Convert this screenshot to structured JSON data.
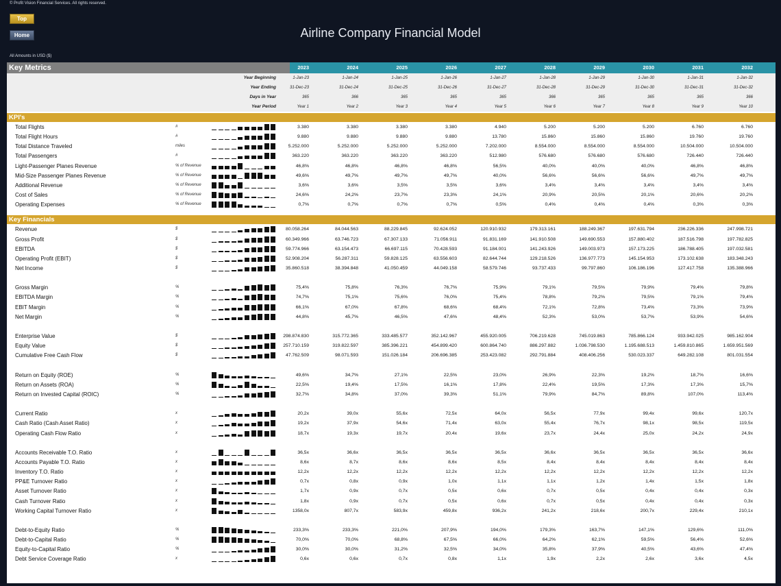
{
  "header": {
    "copyright": "© Profit Vision Financial Services. All rights reserved.",
    "top_button": "Top",
    "home_button": "Home",
    "title": "Airline Company Financial Model",
    "amounts_note": "All Amounts in  USD ($)"
  },
  "table": {
    "section_title": "Key Metrics",
    "years": [
      "2023",
      "2024",
      "2025",
      "2026",
      "2027",
      "2028",
      "2029",
      "2030",
      "2031",
      "2032"
    ],
    "period_rows": [
      {
        "label": "Year Beginning",
        "values": [
          "1-Jan-23",
          "1-Jan-24",
          "1-Jan-25",
          "1-Jan-26",
          "1-Jan-27",
          "1-Jan-28",
          "1-Jan-29",
          "1-Jan-30",
          "1-Jan-31",
          "1-Jan-32"
        ]
      },
      {
        "label": "Year Ending",
        "values": [
          "31-Dec-23",
          "31-Dec-24",
          "31-Dec-25",
          "31-Dec-26",
          "31-Dec-27",
          "31-Dec-28",
          "31-Dec-29",
          "31-Dec-30",
          "31-Dec-31",
          "31-Dec-32"
        ]
      },
      {
        "label": "Days in Year",
        "values": [
          "365",
          "366",
          "365",
          "365",
          "365",
          "366",
          "365",
          "365",
          "365",
          "366"
        ]
      },
      {
        "label": "Year Period",
        "values": [
          "Year 1",
          "Year 2",
          "Year 3",
          "Year 4",
          "Year 5",
          "Year 6",
          "Year 7",
          "Year 8",
          "Year 9",
          "Year 10"
        ]
      }
    ],
    "sections": [
      {
        "title": "KPI's",
        "groups": [
          [
            {
              "label": "Total Flights",
              "unit": "#",
              "values": [
                "3.380",
                "3.380",
                "3.380",
                "3.380",
                "4.940",
                "5.200",
                "5.200",
                "5.200",
                "6.760",
                "6.760"
              ]
            },
            {
              "label": "Total Flight Hours",
              "unit": "#",
              "values": [
                "9.880",
                "9.880",
                "9.880",
                "9.880",
                "13.780",
                "15.860",
                "15.860",
                "15.860",
                "19.760",
                "19.760"
              ]
            },
            {
              "label": "Total Distance Traveled",
              "unit": "miles",
              "values": [
                "5.252.000",
                "5.252.000",
                "5.252.000",
                "5.252.000",
                "7.202.000",
                "8.554.000",
                "8.554.000",
                "8.554.000",
                "10.504.000",
                "10.504.000"
              ]
            },
            {
              "label": "Total Passengers",
              "unit": "#",
              "values": [
                "363.220",
                "363.220",
                "363.220",
                "363.220",
                "512.980",
                "576.680",
                "576.680",
                "576.680",
                "726.440",
                "726.440"
              ]
            },
            {
              "label": "Light-Passenger Planes Revenue",
              "unit": "% of Revenue",
              "values": [
                "46,8%",
                "46,8%",
                "46,8%",
                "46,8%",
                "56,5%",
                "40,0%",
                "40,0%",
                "40,0%",
                "46,8%",
                "46,8%"
              ]
            },
            {
              "label": "Mid-Size Passenger Planes Revenue",
              "unit": "% of Revenue",
              "values": [
                "49,6%",
                "49,7%",
                "49,7%",
                "49,7%",
                "40,0%",
                "56,6%",
                "56,6%",
                "56,6%",
                "49,7%",
                "49,7%"
              ]
            },
            {
              "label": "Additional Revenue",
              "unit": "% of Revenue",
              "values": [
                "3,6%",
                "3,6%",
                "3,5%",
                "3,5%",
                "3,6%",
                "3,4%",
                "3,4%",
                "3,4%",
                "3,4%",
                "3,4%"
              ]
            },
            {
              "label": "Cost of Sales",
              "unit": "% of Revenue",
              "values": [
                "24,6%",
                "24,2%",
                "23,7%",
                "23,3%",
                "24,1%",
                "20,9%",
                "20,5%",
                "20,1%",
                "20,6%",
                "20,2%"
              ]
            },
            {
              "label": "Operating Expenses",
              "unit": "% of Revenue",
              "values": [
                "0,7%",
                "0,7%",
                "0,7%",
                "0,7%",
                "0,5%",
                "0,4%",
                "0,4%",
                "0,4%",
                "0,3%",
                "0,3%"
              ]
            }
          ]
        ]
      },
      {
        "title": "Key Financials",
        "groups": [
          [
            {
              "label": "Revenue",
              "unit": "$",
              "values": [
                "80.058.264",
                "84.044.563",
                "88.229.845",
                "92.624.052",
                "120.910.932",
                "179.313.161",
                "188.249.367",
                "197.631.794",
                "236.226.336",
                "247.998.721"
              ]
            },
            {
              "label": "Gross Profit",
              "unit": "$",
              "values": [
                "60.349.966",
                "63.746.723",
                "67.307.133",
                "71.056.911",
                "91.831.169",
                "141.910.508",
                "149.690.553",
                "157.880.402",
                "187.516.798",
                "197.782.825"
              ]
            },
            {
              "label": "EBITDA",
              "unit": "$",
              "values": [
                "59.774.966",
                "63.154.473",
                "66.697.115",
                "70.428.593",
                "91.184.001",
                "141.243.926",
                "149.003.973",
                "157.173.225",
                "186.788.405",
                "197.032.581"
              ]
            },
            {
              "label": "Operating Profit (EBIT)",
              "unit": "$",
              "values": [
                "52.908.204",
                "56.287.311",
                "59.828.125",
                "63.556.603",
                "82.644.744",
                "129.218.526",
                "136.977.773",
                "145.154.953",
                "173.102.638",
                "183.348.243"
              ]
            },
            {
              "label": "Net Income",
              "unit": "$",
              "values": [
                "35.860.518",
                "38.394.848",
                "41.050.459",
                "44.049.158",
                "58.579.746",
                "93.737.433",
                "99.797.860",
                "106.186.196",
                "127.417.758",
                "135.388.966"
              ]
            }
          ],
          [
            {
              "label": "Gross Margin",
              "unit": "%",
              "values": [
                "75,4%",
                "75,8%",
                "76,3%",
                "76,7%",
                "75,9%",
                "79,1%",
                "79,5%",
                "79,9%",
                "79,4%",
                "79,8%"
              ]
            },
            {
              "label": "EBITDA Margin",
              "unit": "%",
              "values": [
                "74,7%",
                "75,1%",
                "75,6%",
                "76,0%",
                "75,4%",
                "78,8%",
                "79,2%",
                "79,5%",
                "79,1%",
                "79,4%"
              ]
            },
            {
              "label": "EBIT Margin",
              "unit": "%",
              "values": [
                "66,1%",
                "67,0%",
                "67,8%",
                "68,6%",
                "68,4%",
                "72,1%",
                "72,8%",
                "73,4%",
                "73,3%",
                "73,9%"
              ]
            },
            {
              "label": "Net Margin",
              "unit": "%",
              "values": [
                "44,8%",
                "45,7%",
                "46,5%",
                "47,6%",
                "48,4%",
                "52,3%",
                "53,0%",
                "53,7%",
                "53,9%",
                "54,6%"
              ]
            }
          ],
          [
            {
              "label": "Enterprise Value",
              "unit": "$",
              "values": [
                "298.874.830",
                "315.772.365",
                "333.485.577",
                "352.142.967",
                "455.920.005",
                "706.219.628",
                "745.019.863",
                "785.866.124",
                "933.942.025",
                "985.162.904"
              ]
            },
            {
              "label": "Equity Value",
              "unit": "$",
              "values": [
                "257.710.159",
                "319.822.597",
                "385.396.221",
                "454.899.420",
                "600.864.740",
                "886.297.882",
                "1.036.798.530",
                "1.195.688.513",
                "1.459.810.865",
                "1.659.951.569"
              ]
            },
            {
              "label": "Cumulative Free Cash Flow",
              "unit": "$",
              "values": [
                "47.762.509",
                "98.071.593",
                "151.026.184",
                "206.696.385",
                "253.423.082",
                "292.791.884",
                "408.406.256",
                "530.023.337",
                "649.282.108",
                "801.031.554"
              ]
            }
          ],
          [
            {
              "label": "Return on Equity (ROE)",
              "unit": "%",
              "values": [
                "49,6%",
                "34,7%",
                "27,1%",
                "22,5%",
                "23,0%",
                "26,9%",
                "22,3%",
                "19,2%",
                "18,7%",
                "16,6%"
              ]
            },
            {
              "label": "Return on Assets (ROA)",
              "unit": "%",
              "values": [
                "22,5%",
                "19,4%",
                "17,5%",
                "16,1%",
                "17,8%",
                "22,4%",
                "19,5%",
                "17,3%",
                "17,3%",
                "15,7%"
              ]
            },
            {
              "label": "Return on Invested Capital (ROIC)",
              "unit": "%",
              "values": [
                "32,7%",
                "34,8%",
                "37,0%",
                "39,3%",
                "51,1%",
                "79,9%",
                "84,7%",
                "89,8%",
                "107,0%",
                "113,4%"
              ]
            }
          ],
          [
            {
              "label": "Current Ratio",
              "unit": "x",
              "values": [
                "20,2x",
                "39,0x",
                "55,6x",
                "72,5x",
                "64,0x",
                "56,5x",
                "77,9x",
                "99,4x",
                "99,6x",
                "120,7x"
              ]
            },
            {
              "label": "Cash Ratio (Cash Asset Ratio)",
              "unit": "x",
              "values": [
                "19,2x",
                "37,9x",
                "54,6x",
                "71,4x",
                "63,0x",
                "55,4x",
                "76,7x",
                "98,1x",
                "98,5x",
                "119,5x"
              ]
            },
            {
              "label": "Operating Cash Flow Ratio",
              "unit": "x",
              "values": [
                "18,7x",
                "19,3x",
                "19,7x",
                "20,4x",
                "19,6x",
                "23,7x",
                "24,4x",
                "25,0x",
                "24,2x",
                "24,9x"
              ]
            }
          ],
          [
            {
              "label": "Accounts Receivable T.O. Ratio",
              "unit": "x",
              "values": [
                "36,5x",
                "36,6x",
                "36,5x",
                "36,5x",
                "36,5x",
                "36,6x",
                "36,5x",
                "36,5x",
                "36,5x",
                "36,6x"
              ]
            },
            {
              "label": "Accounts Payable T.O. Ratio",
              "unit": "x",
              "values": [
                "8,6x",
                "8,7x",
                "8,6x",
                "8,6x",
                "8,5x",
                "8,4x",
                "8,4x",
                "8,4x",
                "8,4x",
                "8,4x"
              ]
            },
            {
              "label": "Inventory T.O. Ratio",
              "unit": "x",
              "values": [
                "12,2x",
                "12,2x",
                "12,2x",
                "12,2x",
                "12,2x",
                "12,2x",
                "12,2x",
                "12,2x",
                "12,2x",
                "12,2x"
              ]
            },
            {
              "label": "PP&E Turnover Ratio",
              "unit": "x",
              "values": [
                "0,7x",
                "0,8x",
                "0,9x",
                "1,0x",
                "1,1x",
                "1,1x",
                "1,2x",
                "1,4x",
                "1,5x",
                "1,8x"
              ]
            },
            {
              "label": "Asset Turnover Ratio",
              "unit": "x",
              "values": [
                "1,7x",
                "0,9x",
                "0,7x",
                "0,5x",
                "0,6x",
                "0,7x",
                "0,5x",
                "0,4x",
                "0,4x",
                "0,3x"
              ]
            },
            {
              "label": "Cash Turnover Ratio",
              "unit": "x",
              "values": [
                "1,8x",
                "0,9x",
                "0,7x",
                "0,5x",
                "0,6x",
                "0,7x",
                "0,5x",
                "0,4x",
                "0,4x",
                "0,3x"
              ]
            },
            {
              "label": "Working Capital Turnover Ratio",
              "unit": "x",
              "values": [
                "1358,0x",
                "807,7x",
                "583,9x",
                "459,8x",
                "936,2x",
                "241,2x",
                "218,6x",
                "200,7x",
                "229,4x",
                "210,1x"
              ]
            }
          ],
          [
            {
              "label": "Debt-to-Equity Ratio",
              "unit": "%",
              "values": [
                "233,3%",
                "233,3%",
                "221,0%",
                "207,9%",
                "194,0%",
                "179,3%",
                "163,7%",
                "147,1%",
                "129,6%",
                "111,0%"
              ]
            },
            {
              "label": "Debt-to-Capital Ratio",
              "unit": "%",
              "values": [
                "70,0%",
                "70,0%",
                "68,8%",
                "67,5%",
                "66,0%",
                "64,2%",
                "62,1%",
                "59,5%",
                "56,4%",
                "52,6%"
              ]
            },
            {
              "label": "Equity-to-Capital Ratio",
              "unit": "%",
              "values": [
                "30,0%",
                "30,0%",
                "31,2%",
                "32,5%",
                "34,0%",
                "35,8%",
                "37,9%",
                "40,5%",
                "43,6%",
                "47,4%"
              ]
            },
            {
              "label": "Debt Service Coverage Ratio",
              "unit": "x",
              "values": [
                "0,6x",
                "0,6x",
                "0,7x",
                "0,8x",
                "1,1x",
                "1,9x",
                "2,2x",
                "2,6x",
                "3,6x",
                "4,5x"
              ]
            }
          ]
        ]
      }
    ]
  }
}
